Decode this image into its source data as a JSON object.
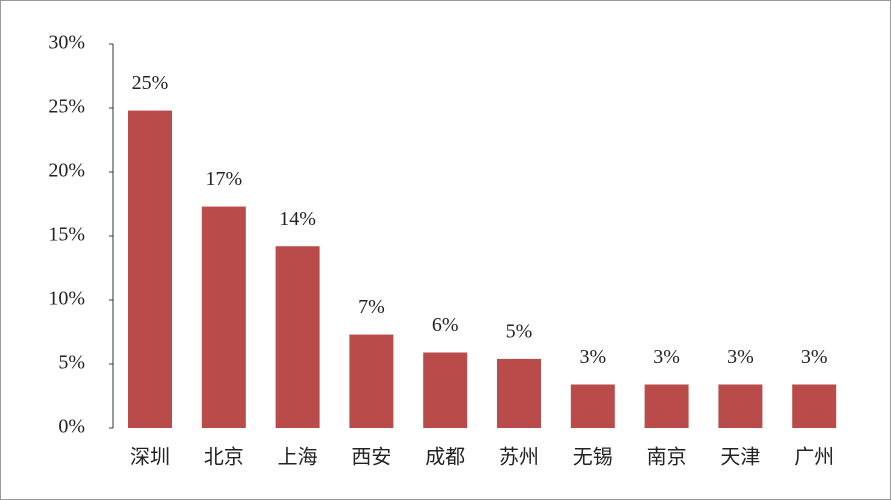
{
  "chart_data": {
    "type": "bar",
    "categories": [
      "深圳",
      "北京",
      "上海",
      "西安",
      "成都",
      "苏州",
      "无锡",
      "南京",
      "天津",
      "广州"
    ],
    "values": [
      24.8,
      17.3,
      14.2,
      7.3,
      5.9,
      5.4,
      3.4,
      3.4,
      3.4,
      3.4
    ],
    "value_labels": [
      "25%",
      "17%",
      "14%",
      "7%",
      "6%",
      "5%",
      "3%",
      "3%",
      "3%",
      "3%"
    ],
    "color": "#b94c4b",
    "ylim": [
      0,
      30
    ],
    "yticks": [
      {
        "value": 0,
        "label": "0%"
      },
      {
        "value": 5,
        "label": "5%"
      },
      {
        "value": 10,
        "label": "10%"
      },
      {
        "value": 15,
        "label": "15%"
      },
      {
        "value": 20,
        "label": "20%"
      },
      {
        "value": 25,
        "label": "25%"
      },
      {
        "value": 30,
        "label": "30%"
      }
    ]
  }
}
